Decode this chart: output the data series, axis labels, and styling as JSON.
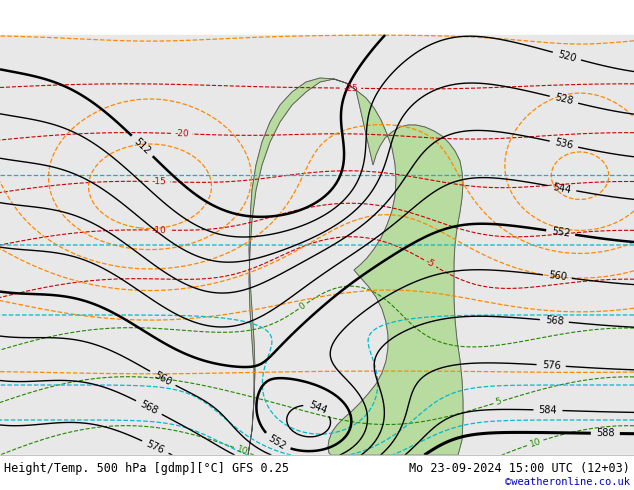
{
  "title_left": "Height/Temp. 500 hPa [gdmp][°C] GFS 0.25",
  "title_right": "Mo 23-09-2024 15:00 UTC (12+03)",
  "credit": "©weatheronline.co.uk",
  "fig_width": 6.34,
  "fig_height": 4.9,
  "dpi": 100,
  "bg_color": "#e0e0e0",
  "land_color": "#f0f0f0",
  "green_color": "#b8dba0",
  "gray_land_color": "#c8c8c8",
  "z500_color": "#000000",
  "temp_neg_color": "#cc0000",
  "temp_pos_color": "#228800",
  "slp_color": "#ff8800",
  "z850_color": "#00bbcc",
  "blue_color": "#0066ff",
  "font_size_main": 8.5,
  "font_size_credit": 7.5
}
